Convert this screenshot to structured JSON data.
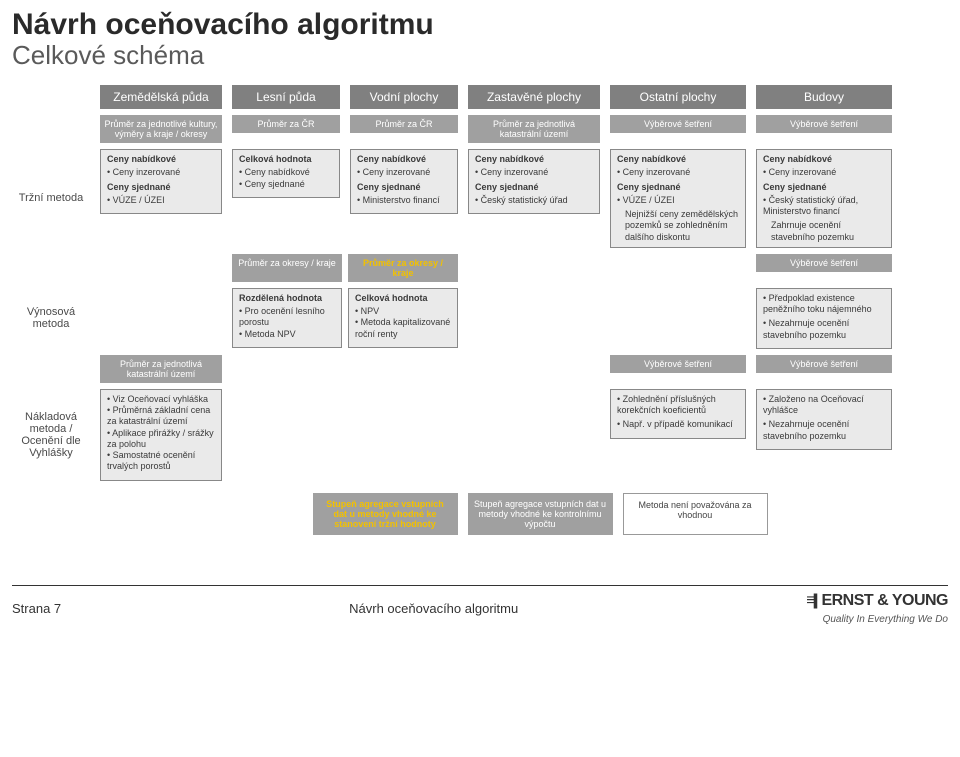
{
  "colors": {
    "header_bg": "#808080",
    "legend_bg": "#a0a0a0",
    "cell_bg": "#eaeaea",
    "cell_border": "#888888",
    "accent_yellow": "#f2c100",
    "text": "#3a3a3a"
  },
  "title1": "Návrh oceňovacího algoritmu",
  "title2": "Celkové schéma",
  "columns": [
    "Zemědělská půda",
    "Lesní půda",
    "Vodní plochy",
    "Zastavěné plochy",
    "Ostatní plochy",
    "Budovy"
  ],
  "methods": {
    "trzni": "Tržní metoda",
    "vynosova": "Výnosová metoda",
    "nakladova": "Nákladová metoda / Ocenění dle Vyhlášky"
  },
  "row1_legends": [
    "Průměr za jednotlivé kultury, výměry a kraje / okresy",
    "Průměr za ČR",
    "Průměr za ČR",
    "Průměr za jednotlivá katastrální území",
    "Výběrové šetření",
    "Výběrové šetření"
  ],
  "trzni_cells": {
    "c1": {
      "t1": "Ceny nabídkové",
      "b1": "Ceny inzerované",
      "t2": "Ceny sjednané",
      "b2": "VÚZE / ÚZEI"
    },
    "c2": {
      "t": "Celková hodnota",
      "b1": "Ceny nabídkové",
      "b2": "Ceny sjednané"
    },
    "c3": {
      "t1": "Ceny nabídkové",
      "b1": "Ceny inzerované",
      "t2": "Ceny sjednané",
      "b2": "Ministerstvo financí"
    },
    "c4": {
      "t1": "Ceny nabídkové",
      "b1": "Ceny inzerované",
      "t2": "Ceny sjednané",
      "b2": "Český statistický úřad"
    },
    "c5": {
      "t1": "Ceny nabídkové",
      "b1": "Ceny inzerované",
      "t2": "Ceny sjednané",
      "b2": "VÚZE / ÚZEI",
      "extra": "Nejnižší ceny zemědělských pozemků se zohledněním dalšího diskontu"
    },
    "c6": {
      "t1": "Ceny nabídkové",
      "b1": "Ceny inzerované",
      "t2": "Ceny sjednané",
      "b2": "Český statistický úřad, Ministerstvo financí",
      "extra": "Zahrnuje ocenění stavebního pozemku"
    }
  },
  "vynosova": {
    "leg_left": "Průměr za okresy / kraje",
    "leg_right": "Průměr za okresy / kraje",
    "leg_far": "Výběrové šetření",
    "left": {
      "t": "Rozdělená hodnota",
      "b1": "Pro ocenění lesního porostu",
      "b2": "Metoda NPV"
    },
    "right": {
      "t": "Celková hodnota",
      "b1": "NPV",
      "b2": "Metoda kapitalizované roční renty"
    },
    "far": {
      "b1": "Předpoklad existence peněžního toku nájemného",
      "b2": "Nezahrnuje ocenění stavebního pozemku"
    }
  },
  "nakladova": {
    "leg1": "Průměr za jednotlivá katastrální území",
    "leg5": "Výběrové šetření",
    "leg6": "Výběrové šetření",
    "c1": {
      "b1": "Viz Oceňovací vyhláška",
      "b2": "Průměrná základní cena za katastrální území",
      "b3": "Aplikace přirážky / srážky za polohu",
      "b4": "Samostatné ocenění trvalých porostů"
    },
    "c5": {
      "b1": "Zohlednění příslušných korekčních koeficientů",
      "b2": "Např. v případě komunikací"
    },
    "c6": {
      "b1": "Založeno na Oceňovací vyhlášce",
      "b2": "Nezahrnuje ocenění stavebního pozemku"
    }
  },
  "bottom_legends": [
    "Stupeň agregace vstupních dat u metody vhodné ke stanovení tržní hodnoty",
    "Stupeň agregace vstupních dat u metody vhodné ke kontrolnímu výpočtu",
    "Metoda není považována za vhodnou"
  ],
  "footer": {
    "page": "Strana 7",
    "center": "Návrh oceňovacího algoritmu",
    "brand": "ERNST & YOUNG",
    "tag": "Quality In Everything We Do"
  }
}
